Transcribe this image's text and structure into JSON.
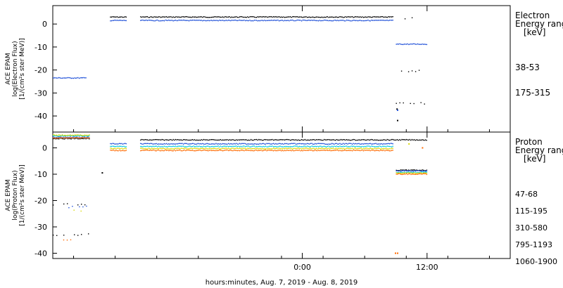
{
  "xlabel": "hours:minutes, Aug.  7, 2019 - Aug.  8, 2019",
  "x_ticks": [
    {
      "label": "0:00",
      "hour": 0
    },
    {
      "label": "12:00",
      "hour": 12
    }
  ],
  "x_minor_ticks": [
    -22,
    -18,
    -14,
    -10,
    -6,
    -2,
    2,
    6,
    10,
    14,
    18
  ],
  "x_range_hours": [
    -24,
    20
  ],
  "chart_data": [
    {
      "type": "scatter",
      "panel": "electron",
      "ylabel_lines": [
        "ACE EPAM",
        "log(Electron Flux)",
        "[1/(cm²s ster MeV)]"
      ],
      "ylim": [
        -47,
        8
      ],
      "y_ticks": [
        0,
        -10,
        -20,
        -30,
        -40
      ],
      "legend_title": [
        "Electron",
        "Energy range",
        "[keV]"
      ],
      "series": [
        {
          "name": "38-53",
          "color": "#000000",
          "segments": [
            {
              "x": [
                -18.5,
                -16.9
              ],
              "y": 3.0
            },
            {
              "x": [
                -15.6,
                8.7
              ],
              "y": 3.0
            },
            {
              "x": [
                9.5,
                11.2
              ],
              "y": 2.5,
              "sparse": true
            },
            {
              "x": [
                9.5,
                12.0
              ],
              "y": -20.5,
              "sparse": true
            },
            {
              "x": [
                9.0,
                12.0
              ],
              "y": -34.5,
              "sparse": true
            }
          ],
          "points": [
            [
              9.1,
              -42
            ],
            [
              9.05,
              -37
            ]
          ]
        },
        {
          "name": "175-315",
          "color": "#1e4fd8",
          "segments": [
            {
              "x": [
                -24,
                -20.8
              ],
              "y": -23.5
            },
            {
              "x": [
                -18.5,
                -16.9
              ],
              "y": 1.5
            },
            {
              "x": [
                -15.6,
                8.7
              ],
              "y": 1.5
            },
            {
              "x": [
                9.0,
                12.0
              ],
              "y": -8.8
            }
          ],
          "points": [
            [
              9.1,
              -37.5
            ]
          ]
        }
      ]
    },
    {
      "type": "scatter",
      "panel": "proton",
      "ylabel_lines": [
        "ACE EPAM",
        "log(Proton Flux)",
        "[1/(cm²s ster MeV)]"
      ],
      "ylim": [
        -42,
        6
      ],
      "y_ticks": [
        0,
        -10,
        -20,
        -30,
        -40
      ],
      "legend_title": [
        "Proton",
        "Energy range",
        "[keV]"
      ],
      "series": [
        {
          "name": "47-68",
          "color": "#000000",
          "segments": [
            {
              "x": [
                -24,
                -20.5
              ],
              "y": 3.5
            },
            {
              "x": [
                -15.6,
                12.0
              ],
              "y": 3.0
            },
            {
              "x": [
                -24,
                -20.5
              ],
              "y": -21.5,
              "sparse": true
            },
            {
              "x": [
                -24,
                -20.5
              ],
              "y": -33,
              "sparse": true
            },
            {
              "x": [
                9.0,
                12.0
              ],
              "y": -8.5
            }
          ],
          "points": [
            [
              -19.3,
              -9.5
            ]
          ]
        },
        {
          "name": "115-195",
          "color": "#1e4fd8",
          "segments": [
            {
              "x": [
                -24,
                -20.5
              ],
              "y": 4.0
            },
            {
              "x": [
                -18.5,
                -16.9
              ],
              "y": 1.5
            },
            {
              "x": [
                -15.6,
                8.7
              ],
              "y": 1.5
            },
            {
              "x": [
                -22.5,
                -20.5
              ],
              "y": -22.5,
              "sparse": true
            },
            {
              "x": [
                9.0,
                12.0
              ],
              "y": -8.8
            }
          ],
          "points": []
        },
        {
          "name": "310-580",
          "color": "#00c8dc",
          "segments": [
            {
              "x": [
                -24,
                -20.5
              ],
              "y": 4.5
            },
            {
              "x": [
                -18.5,
                -16.9
              ],
              "y": 0.5
            },
            {
              "x": [
                -15.6,
                8.7
              ],
              "y": 0.5
            },
            {
              "x": [
                9.0,
                12.0
              ],
              "y": -9.3
            }
          ],
          "points": []
        },
        {
          "name": "795-1193",
          "color": "#d8d800",
          "segments": [
            {
              "x": [
                -24,
                -20.5
              ],
              "y": 4.8
            },
            {
              "x": [
                -18.5,
                -16.9
              ],
              "y": -0.3
            },
            {
              "x": [
                -15.6,
                8.7
              ],
              "y": -0.3
            },
            {
              "x": [
                -22.0,
                -21.0
              ],
              "y": -24,
              "sparse": true
            },
            {
              "x": [
                9.0,
                12.0
              ],
              "y": -9.6
            }
          ],
          "points": [
            [
              10.2,
              1.5
            ]
          ]
        },
        {
          "name": "1060-1900",
          "color": "#ff6a00",
          "segments": [
            {
              "x": [
                -24,
                -20.5
              ],
              "y": 3.8
            },
            {
              "x": [
                -18.5,
                -16.9
              ],
              "y": -1.0
            },
            {
              "x": [
                -15.6,
                8.7
              ],
              "y": -1.0
            },
            {
              "x": [
                -23.0,
                -22.0
              ],
              "y": -35,
              "sparse": true
            },
            {
              "x": [
                9.0,
                12.0
              ],
              "y": -10.0
            }
          ],
          "points": [
            [
              8.9,
              -40
            ],
            [
              9.1,
              -40
            ],
            [
              11.5,
              0
            ]
          ]
        }
      ]
    }
  ]
}
